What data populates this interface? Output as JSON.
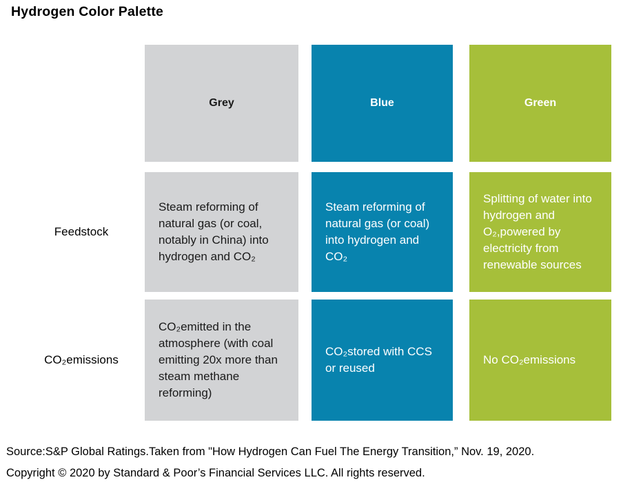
{
  "page": {
    "title": "Hydrogen Color Palette",
    "source_line": "Source:S&P Global Ratings.Taken from \"How Hydrogen Can Fuel The Energy Transition,” Nov. 19, 2020.",
    "copyright_line": "Copyright © 2020 by Standard & Poor’s Financial Services LLC. All rights reserved."
  },
  "palette": {
    "colors": {
      "grey": "#d2d3d5",
      "blue": "#0883ae",
      "green": "#a6bf3a",
      "grey_text": "#1a1a1a",
      "blue_green_text": "#ffffff"
    },
    "columns": [
      {
        "key": "grey",
        "label": "Grey"
      },
      {
        "key": "blue",
        "label": "Blue"
      },
      {
        "key": "green",
        "label": "Green"
      }
    ],
    "rows": [
      {
        "label": "Feedstock",
        "grey": "Steam reforming of natural gas (or coal, notably in China) into hydrogen and CO₂",
        "blue": "Steam reforming of natural gas (or coal) into hydrogen and CO₂",
        "green": "Splitting of water into hydrogen and O₂,powered by electricity from renewable sources"
      },
      {
        "label": "CO₂emissions",
        "grey": "CO₂emitted in the atmosphere (with coal emitting 20x more than steam methane reforming)",
        "blue": "CO₂stored with CCS or reused",
        "green": "No CO₂emissions"
      }
    ]
  }
}
